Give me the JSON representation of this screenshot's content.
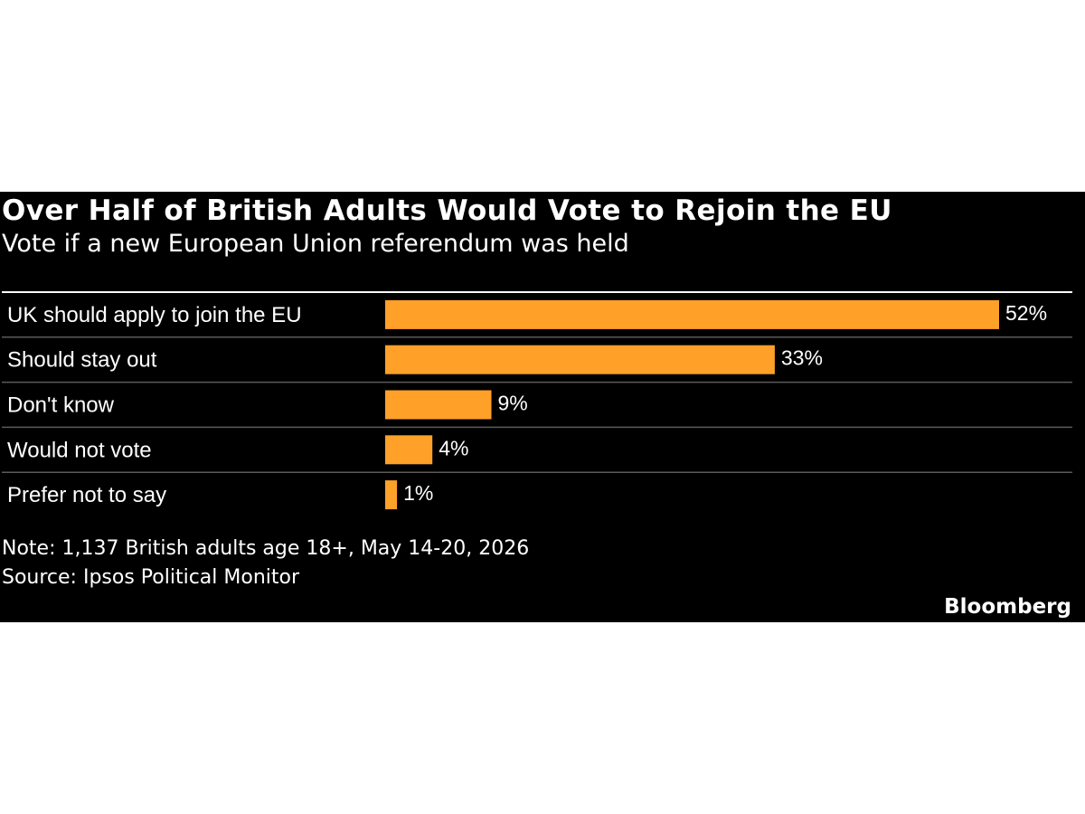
{
  "chart_data": {
    "type": "bar",
    "orientation": "horizontal",
    "title": "Over Half of British Adults Would Vote to Rejoin the EU",
    "subtitle": "Vote if a new European Union referendum was held",
    "categories": [
      "UK should apply to join the EU",
      "Should stay out",
      "Don't know",
      "Would not vote",
      "Prefer not to say"
    ],
    "values": [
      52,
      33,
      9,
      4,
      1
    ],
    "value_labels": [
      "52%",
      "33%",
      "9%",
      "4%",
      "1%"
    ],
    "unit": "%",
    "xlim": [
      0,
      52
    ],
    "grid": false,
    "legend": "none",
    "colors": {
      "bar": "#FFA029",
      "background": "#000000",
      "text": "#FFFFFF",
      "divider": "#5A5A5A"
    }
  },
  "footer": {
    "note": "Note: 1,137 British adults age 18+, May 14-20, 2026",
    "source": "Source: Ipsos Political Monitor",
    "brand": "Bloomberg"
  }
}
